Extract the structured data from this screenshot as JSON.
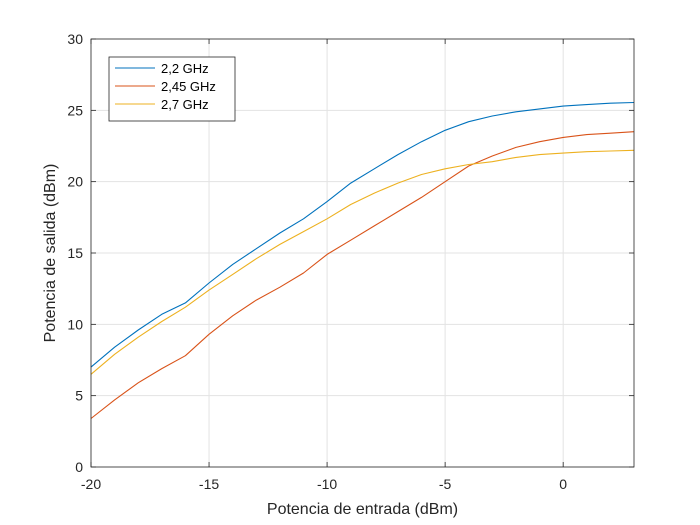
{
  "chart_data": {
    "type": "line",
    "xlabel": "Potencia de entrada (dBm)",
    "ylabel": "Potencia de salida (dBm)",
    "xlim": [
      -20,
      3
    ],
    "ylim": [
      0,
      30
    ],
    "xticks": [
      -20,
      -15,
      -10,
      -5,
      0
    ],
    "xtick_labels": [
      "-20",
      "-15",
      "-10",
      "-5",
      "0"
    ],
    "yticks": [
      0,
      5,
      10,
      15,
      20,
      25,
      30
    ],
    "ytick_labels": [
      "0",
      "5",
      "10",
      "15",
      "20",
      "25",
      "30"
    ],
    "grid": true,
    "legend_position": "top-left",
    "x": [
      -20,
      -19,
      -18,
      -17,
      -16,
      -15,
      -14,
      -13,
      -12,
      -11,
      -10,
      -9,
      -8,
      -7,
      -6,
      -5,
      -4,
      -3,
      -2,
      -1,
      0,
      1,
      2,
      3
    ],
    "series": [
      {
        "name": "2,2 GHz",
        "color": "#0072BD",
        "values": [
          7.0,
          8.4,
          9.6,
          10.7,
          11.5,
          12.9,
          14.2,
          15.3,
          16.4,
          17.4,
          18.6,
          19.9,
          20.9,
          21.9,
          22.8,
          23.6,
          24.2,
          24.6,
          24.9,
          25.1,
          25.3,
          25.4,
          25.5,
          25.55
        ]
      },
      {
        "name": "2,45 GHz",
        "color": "#D95319",
        "values": [
          3.4,
          4.7,
          5.9,
          6.9,
          7.8,
          9.3,
          10.6,
          11.7,
          12.6,
          13.6,
          14.9,
          15.9,
          16.9,
          17.9,
          18.9,
          20.0,
          21.1,
          21.8,
          22.4,
          22.8,
          23.1,
          23.3,
          23.4,
          23.5
        ]
      },
      {
        "name": "2,7 GHz",
        "color": "#EDB120",
        "values": [
          6.5,
          7.9,
          9.1,
          10.2,
          11.2,
          12.4,
          13.5,
          14.6,
          15.6,
          16.5,
          17.4,
          18.4,
          19.2,
          19.9,
          20.5,
          20.9,
          21.2,
          21.4,
          21.7,
          21.9,
          22.0,
          22.1,
          22.15,
          22.2
        ]
      }
    ]
  }
}
